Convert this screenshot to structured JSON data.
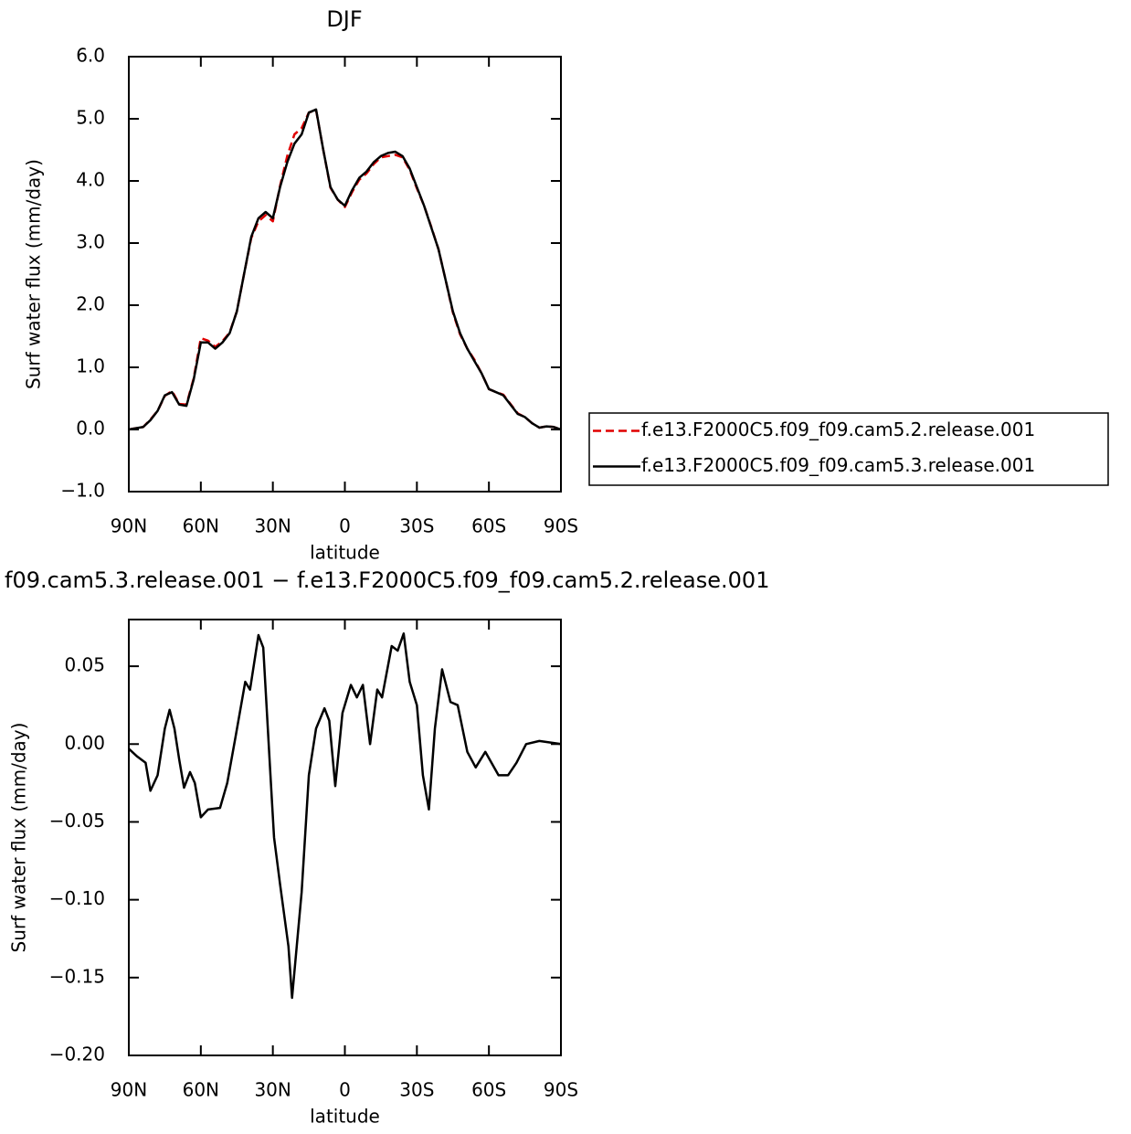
{
  "chart_data": [
    {
      "type": "line",
      "title": "DJF",
      "x_label": "latitude",
      "y_label": "Surf water flux (mm/day)",
      "xlim": [
        90,
        -90
      ],
      "xticks": [
        {
          "value": 90,
          "label": "90N"
        },
        {
          "value": 60,
          "label": "60N"
        },
        {
          "value": 30,
          "label": "30N"
        },
        0,
        {
          "value": -30,
          "label": "30S"
        },
        {
          "value": -60,
          "label": "60S"
        },
        {
          "value": -90,
          "label": "90S"
        }
      ],
      "ylim": [
        -1,
        6
      ],
      "yticks": [
        {
          "value": -1,
          "label": "−1.0"
        },
        {
          "value": 0,
          "label": "0.0"
        },
        {
          "value": 1,
          "label": "1.0"
        },
        {
          "value": 2,
          "label": "2.0"
        },
        {
          "value": 3,
          "label": "3.0"
        },
        {
          "value": 4,
          "label": "4.0"
        },
        {
          "value": 5,
          "label": "5.0"
        },
        {
          "value": 6,
          "label": "6.0"
        }
      ],
      "legend": "right",
      "x": [
        90,
        87,
        84,
        81,
        78,
        75,
        72,
        69,
        66,
        63,
        60,
        57,
        54,
        51,
        48,
        45,
        42,
        39,
        36,
        33,
        30,
        27,
        24,
        21,
        18,
        15,
        12,
        9,
        6,
        3,
        0,
        -3,
        -6,
        -9,
        -12,
        -15,
        -18,
        -21,
        -24,
        -27,
        -30,
        -33,
        -36,
        -39,
        -42,
        -45,
        -48,
        -51,
        -54,
        -57,
        -60,
        -63,
        -66,
        -69,
        -72,
        -75,
        -78,
        -81,
        -84,
        -87,
        -90
      ],
      "series": [
        {
          "name": "f.e13.F2000C5.f09_f09.cam5.2.release.001",
          "color": "#e00000",
          "dashed": true,
          "values": [
            0.0,
            0.02,
            0.04,
            0.16,
            0.3,
            0.54,
            0.62,
            0.41,
            0.4,
            0.82,
            1.47,
            1.43,
            1.33,
            1.42,
            1.56,
            1.9,
            2.5,
            3.08,
            3.35,
            3.45,
            3.35,
            3.92,
            4.4,
            4.75,
            4.85,
            5.1,
            5.14,
            4.5,
            3.89,
            3.7,
            3.58,
            3.82,
            4.02,
            4.12,
            4.27,
            4.38,
            4.4,
            4.42,
            4.38,
            4.18,
            3.88,
            3.6,
            3.26,
            2.9,
            2.4,
            1.88,
            1.53,
            1.3,
            1.12,
            0.9,
            0.65,
            0.6,
            0.56,
            0.41,
            0.26,
            0.2,
            0.1,
            0.03,
            0.05,
            0.04,
            0.0
          ]
        },
        {
          "name": "f.e13.F2000C5.f09_f09.cam5.3.release.001",
          "color": "#000000",
          "dashed": false,
          "values": [
            0.0,
            0.02,
            0.04,
            0.15,
            0.3,
            0.55,
            0.6,
            0.4,
            0.38,
            0.8,
            1.4,
            1.4,
            1.3,
            1.4,
            1.55,
            1.9,
            2.5,
            3.1,
            3.4,
            3.5,
            3.4,
            3.9,
            4.3,
            4.6,
            4.75,
            5.1,
            5.15,
            4.5,
            3.9,
            3.7,
            3.6,
            3.85,
            4.05,
            4.15,
            4.3,
            4.4,
            4.45,
            4.47,
            4.4,
            4.2,
            3.9,
            3.6,
            3.25,
            2.9,
            2.4,
            1.9,
            1.55,
            1.3,
            1.1,
            0.9,
            0.65,
            0.6,
            0.55,
            0.4,
            0.25,
            0.2,
            0.1,
            0.03,
            0.05,
            0.04,
            0.0
          ]
        }
      ]
    },
    {
      "type": "line",
      "title": "f09.cam5.3.release.001 − f.e13.F2000C5.f09_f09.cam5.2.release.001",
      "x_label": "latitude",
      "y_label": "Surf water flux (mm/day)",
      "xlim": [
        90,
        -90
      ],
      "xticks": [
        {
          "value": 90,
          "label": "90N"
        },
        {
          "value": 60,
          "label": "60N"
        },
        {
          "value": 30,
          "label": "30N"
        },
        0,
        {
          "value": -30,
          "label": "30S"
        },
        {
          "value": -60,
          "label": "60S"
        },
        {
          "value": -90,
          "label": "90S"
        }
      ],
      "ylim": [
        -0.2,
        0.08
      ],
      "yticks": [
        {
          "value": -0.2,
          "label": "−0.20"
        },
        {
          "value": -0.15,
          "label": "−0.15"
        },
        {
          "value": -0.1,
          "label": "−0.10"
        },
        {
          "value": -0.05,
          "label": "−0.05"
        },
        {
          "value": 0,
          "label": "0.00"
        },
        {
          "value": 0.05,
          "label": "0.05"
        }
      ],
      "x": [
        90,
        86.5,
        83,
        81,
        78,
        75,
        73,
        71,
        69,
        67,
        64.5,
        62.5,
        60,
        57,
        52,
        49,
        45.5,
        41.5,
        39.5,
        36,
        34,
        31,
        29.5,
        27,
        23.5,
        22,
        18,
        15,
        12,
        8.5,
        6.5,
        4,
        1,
        -2.5,
        -5,
        -7.5,
        -10.5,
        -13.5,
        -15.5,
        -19.5,
        -22,
        -24.5,
        -27,
        -30,
        -32.5,
        -35,
        -37.5,
        -40.5,
        -44,
        -47,
        -51,
        -54.5,
        -58.5,
        -64,
        -68,
        -71.5,
        -75.5,
        -81,
        -90
      ],
      "series": [
        {
          "color": "#000000",
          "dashed": false,
          "values": [
            -0.003,
            -0.008,
            -0.012,
            -0.03,
            -0.02,
            0.01,
            0.022,
            0.01,
            -0.01,
            -0.028,
            -0.018,
            -0.025,
            -0.047,
            -0.042,
            -0.041,
            -0.025,
            0.005,
            0.04,
            0.035,
            0.07,
            0.062,
            -0.02,
            -0.06,
            -0.09,
            -0.13,
            -0.163,
            -0.095,
            -0.02,
            0.01,
            0.023,
            0.015,
            -0.027,
            0.02,
            0.038,
            0.03,
            0.038,
            0.0,
            0.035,
            0.03,
            0.063,
            0.06,
            0.071,
            0.04,
            0.025,
            -0.02,
            -0.042,
            0.01,
            0.048,
            0.027,
            0.025,
            -0.005,
            -0.015,
            -0.005,
            -0.02,
            -0.02,
            -0.012,
            0.0,
            0.002,
            0.0
          ]
        }
      ]
    }
  ]
}
